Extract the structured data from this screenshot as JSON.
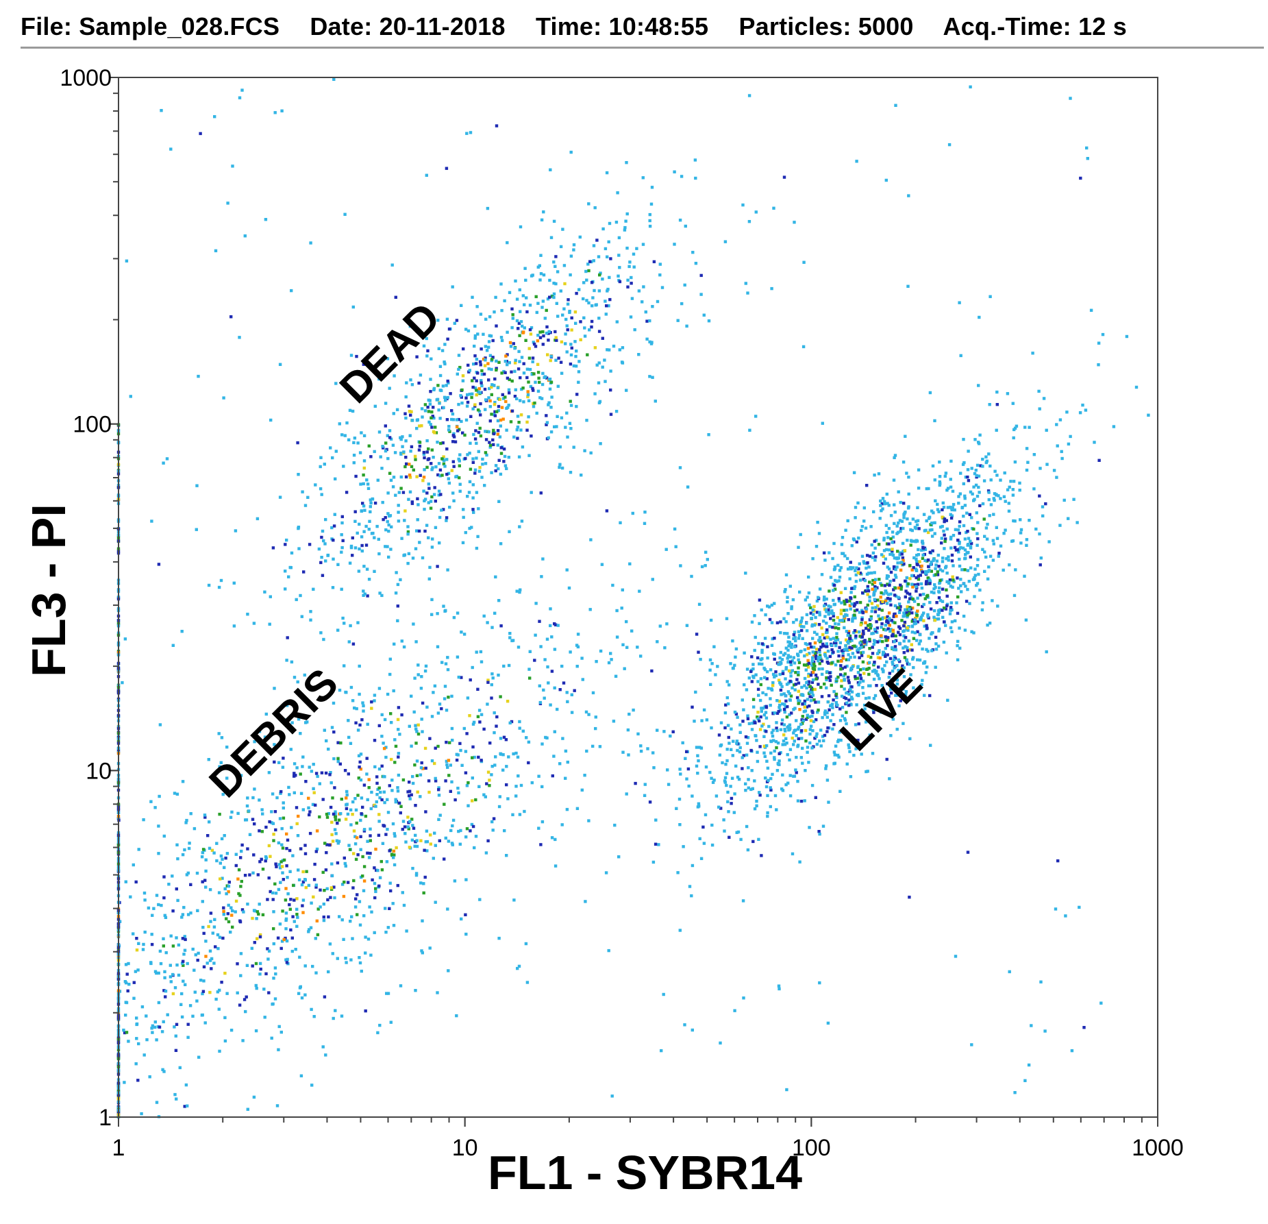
{
  "header": {
    "file": "File: Sample_028.FCS",
    "date": "Date: 20-11-2018",
    "time": "Time: 10:48:55",
    "particles": "Particles: 5000",
    "acq_time": "Acq.-Time: 12 s"
  },
  "chart_data": {
    "type": "scatter",
    "subtype": "flow-cytometry density dot plot",
    "xlabel": "FL1 - SYBR14",
    "ylabel": "FL3 - PI",
    "xscale": "log",
    "yscale": "log",
    "xlim": [
      1,
      1000
    ],
    "ylim": [
      1,
      1000
    ],
    "xticks": [
      "1",
      "10",
      "100",
      "1000"
    ],
    "yticks": [
      "1",
      "10",
      "100",
      "1000"
    ],
    "grid": false,
    "density_colors": [
      "#33b5e5",
      "#1f2bb3",
      "#2aa02a",
      "#e6d21e",
      "#ff8c00",
      "#e0217a"
    ],
    "total_events": 5000,
    "annotations": [
      {
        "text": "DEAD",
        "x": 6.5,
        "y": 150
      },
      {
        "text": "DEBRIS",
        "x": 3.0,
        "y": 12
      },
      {
        "text": "LIVE",
        "x": 170,
        "y": 14
      }
    ],
    "populations": [
      {
        "name": "DEAD",
        "center_x": 11,
        "center_y": 110,
        "spread": 0.22,
        "axis_slope": 1.0,
        "approx_events": 1100
      },
      {
        "name": "DEBRIS",
        "center_x": 4,
        "center_y": 6,
        "spread": 0.33,
        "axis_slope": 0.8,
        "approx_events": 1400
      },
      {
        "name": "LIVE",
        "center_x": 140,
        "center_y": 25,
        "spread": 0.2,
        "axis_slope": 1.1,
        "approx_events": 2200
      },
      {
        "name": "axis-pile-up",
        "x": 1,
        "y_range": [
          1,
          100
        ],
        "approx_events": 300
      }
    ]
  }
}
